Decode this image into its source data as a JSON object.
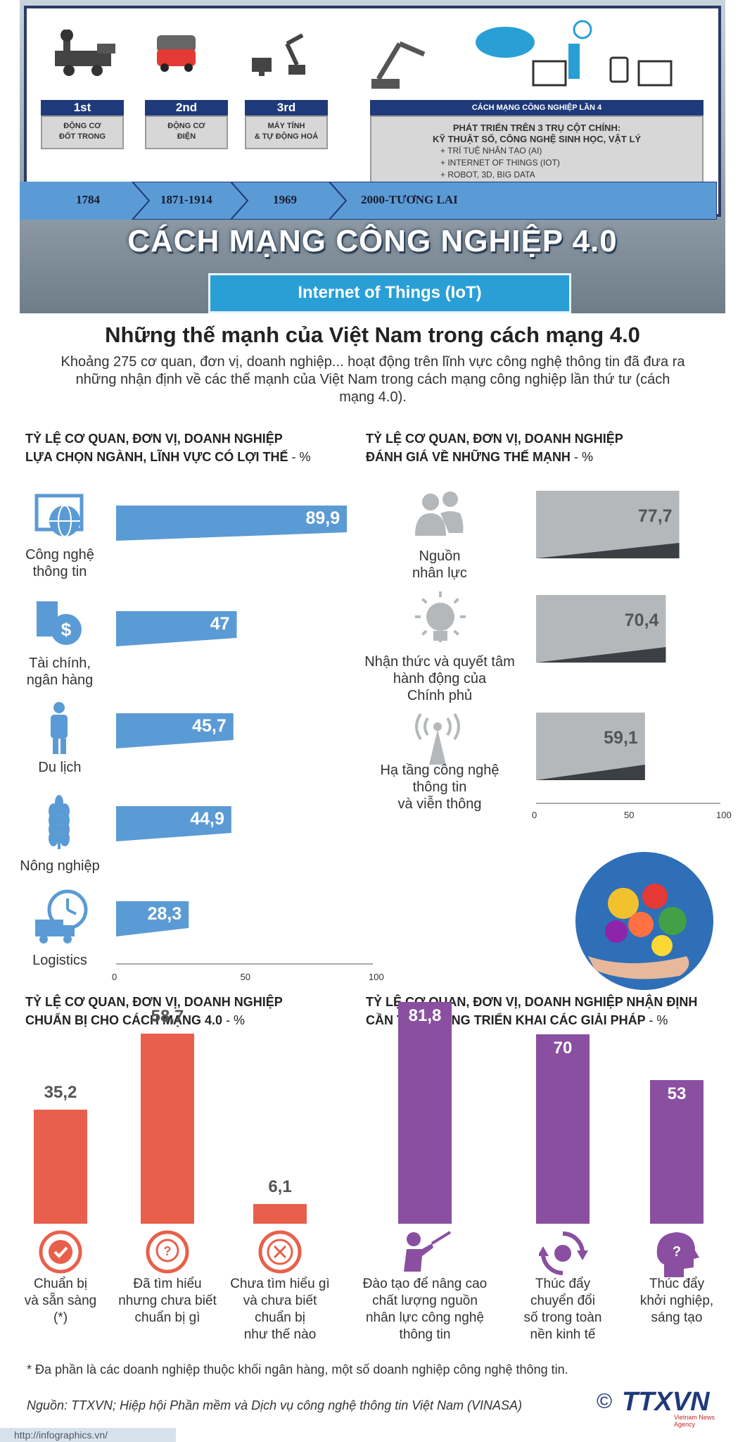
{
  "header": {
    "eras": [
      {
        "tag": "1st",
        "label_line1": "ĐỘNG CƠ",
        "label_line2": "ĐỐT TRONG",
        "year": "1784"
      },
      {
        "tag": "2nd",
        "label_line1": "ĐỘNG CƠ",
        "label_line2": "ĐIỆN",
        "year": "1871-1914"
      },
      {
        "tag": "3rd",
        "label_line1": "MÁY TÍNH",
        "label_line2": "& TỰ ĐỘNG HOÁ",
        "year": "1969"
      }
    ],
    "era4": {
      "tag": "CÁCH MẠNG CÔNG NGHIỆP LẦN 4",
      "title_line1": "PHÁT TRIỂN TRÊN 3 TRỤ CỘT CHÍNH:",
      "title_line2": "KỸ THUẬT SỐ, CÔNG NGHỆ SINH HỌC, VẬT LÝ",
      "items": [
        "+ TRÍ TUỆ NHÂN TẠO (AI)",
        "+ INTERNET OF THINGS (IOT)",
        "+ ROBOT, 3D, BIG DATA"
      ],
      "year": "2000-TƯƠNG LAI"
    },
    "main_title": "CÁCH MẠNG CÔNG NGHIỆP 4.0",
    "iot_label": "Internet of Things (IoT)"
  },
  "headline": "Những thế mạnh của Việt Nam trong cách mạng 4.0",
  "intro": "Khoảng 275 cơ quan, đơn vị, doanh nghiệp... hoạt động trên lĩnh vực công nghệ thông tin đã đưa ra những nhận định về các thế mạnh của Việt Nam trong cách mạng công nghiệp lần thứ tư (cách mạng 4.0).",
  "footnote": "* Đa phần là các doanh nghiệp thuộc khối ngân hàng, một số doanh nghiệp công nghệ thông tin.",
  "source": "Nguồn: TTXVN; Hiệp hội Phần mềm và Dịch vụ công nghệ thông tin Việt Nam (VINASA)",
  "logo": {
    "main": "TTXVN",
    "sub": "Vietnam News Agency",
    "copyright": "©"
  },
  "url": "http://infographics.vn/",
  "colors": {
    "blue_bar": "#5b9bd5",
    "gray_bar": "#b4b8ba",
    "orange_bar": "#e8604c",
    "purple_bar": "#8a4fa0",
    "header_navy": "#1f3a7a"
  },
  "chart_data": [
    {
      "type": "bar",
      "orientation": "horizontal",
      "title_line1": "TỶ LỆ CƠ QUAN, ĐƠN VỊ, DOANH NGHIỆP",
      "title_line2": "LỰA CHỌN NGÀNH, LĨNH VỰC CÓ LỢI THẾ",
      "unit": "- %",
      "categories": [
        "Công nghệ thông tin",
        "Tài chính, ngân hàng",
        "Du lịch",
        "Nông nghiệp",
        "Logistics"
      ],
      "labels": [
        "89,9",
        "47",
        "45,7",
        "44,9",
        "28,3"
      ],
      "values": [
        89.9,
        47,
        45.7,
        44.9,
        28.3
      ],
      "icons": [
        "globe-monitor-icon",
        "money-bag-icon",
        "traveler-icon",
        "wheat-icon",
        "truck-clock-icon"
      ],
      "xlim": [
        0,
        100
      ],
      "ticks": [
        "0",
        "50",
        "100"
      ]
    },
    {
      "type": "bar",
      "orientation": "horizontal",
      "title_line1": "TỶ LỆ CƠ QUAN, ĐƠN VỊ, DOANH NGHIỆP",
      "title_line2": "ĐÁNH GIÁ VỀ NHỮNG THẾ MẠNH",
      "unit": "- %",
      "categories": [
        "Nguồn nhân lực",
        "Nhận thức và quyết tâm hành động của Chính phủ",
        "Hạ tầng công nghệ thông tin và viễn thông"
      ],
      "labels": [
        "77,7",
        "70,4",
        "59,1"
      ],
      "values": [
        77.7,
        70.4,
        59.1
      ],
      "icons": [
        "people-icon",
        "lightbulb-icon",
        "antenna-icon"
      ],
      "xlim": [
        0,
        100
      ],
      "ticks": [
        "0",
        "50",
        "100"
      ]
    },
    {
      "type": "bar",
      "orientation": "vertical",
      "title_line1": "TỶ LỆ CƠ QUAN, ĐƠN VỊ, DOANH NGHIỆP",
      "title_line2": "CHUẨN BỊ CHO CÁCH MẠNG 4.0",
      "unit": "- %",
      "categories": [
        "Chuẩn bị và sẵn sàng (*)",
        "Đã tìm hiểu nhưng chưa biết chuẩn bị gì",
        "Chưa tìm hiểu gì và chưa biết chuẩn bị như thế nào"
      ],
      "labels": [
        "35,2",
        "58,7",
        "6,1"
      ],
      "values": [
        35.2,
        58.7,
        6.1
      ],
      "icons": [
        "check-circle-icon",
        "question-circle-icon",
        "cross-circle-icon"
      ]
    },
    {
      "type": "bar",
      "orientation": "vertical",
      "title_line1": "TỶ LỆ CƠ QUAN, ĐƠN VỊ, DOANH NGHIỆP NHẬN ĐỊNH",
      "title_line2": "CẦN TẬP TRUNG TRIỂN KHAI CÁC GIẢI PHÁP",
      "unit": "- %",
      "categories": [
        "Đào tạo để nâng cao chất lượng nguồn nhân lực công nghệ thông tin",
        "Thúc đẩy chuyển đổi số trong toàn nền kinh tế",
        "Thúc đẩy khởi nghiệp, sáng tạo"
      ],
      "labels": [
        "81,8",
        "70",
        "53"
      ],
      "values": [
        81.8,
        70,
        53
      ],
      "icons": [
        "teacher-icon",
        "cycle-arrows-icon",
        "head-question-icon"
      ]
    }
  ]
}
